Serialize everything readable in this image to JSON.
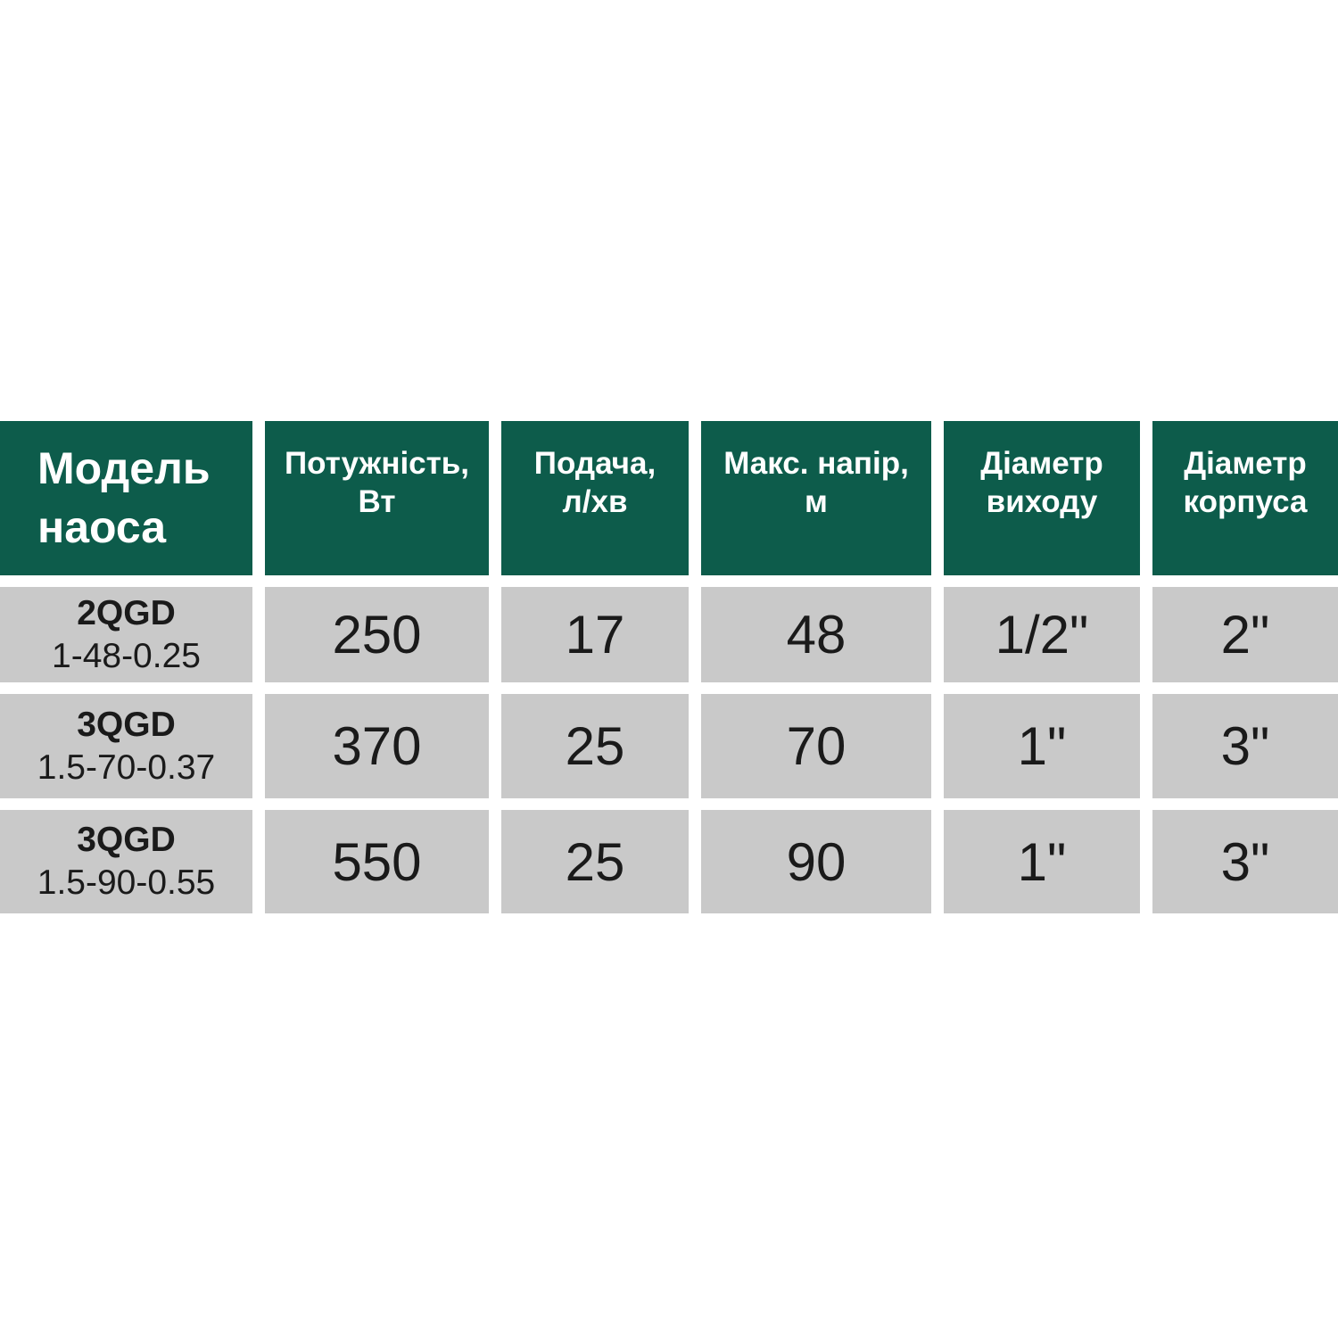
{
  "table": {
    "header_color": "#0d5c4b",
    "cell_color": "#c9c9c9",
    "columns": [
      {
        "line1": "Модель",
        "line2": "наоса"
      },
      {
        "line1": "Потужність,",
        "line2": "Вт"
      },
      {
        "line1": "Подача,",
        "line2": "л/хв"
      },
      {
        "line1": "Макс. напір,",
        "line2": "м"
      },
      {
        "line1": "Діаметр",
        "line2": "виходу"
      },
      {
        "line1": "Діаметр",
        "line2": "корпуса"
      }
    ],
    "rows": [
      {
        "model_series": "2QGD",
        "model_code": "1-48-0.25",
        "power": "250",
        "flow": "17",
        "head": "48",
        "outlet": "1/2\"",
        "body": "2\""
      },
      {
        "model_series": "3QGD",
        "model_code": "1.5-70-0.37",
        "power": "370",
        "flow": "25",
        "head": "70",
        "outlet": "1\"",
        "body": "3\""
      },
      {
        "model_series": "3QGD",
        "model_code": "1.5-90-0.55",
        "power": "550",
        "flow": "25",
        "head": "90",
        "outlet": "1\"",
        "body": "3\""
      }
    ]
  }
}
